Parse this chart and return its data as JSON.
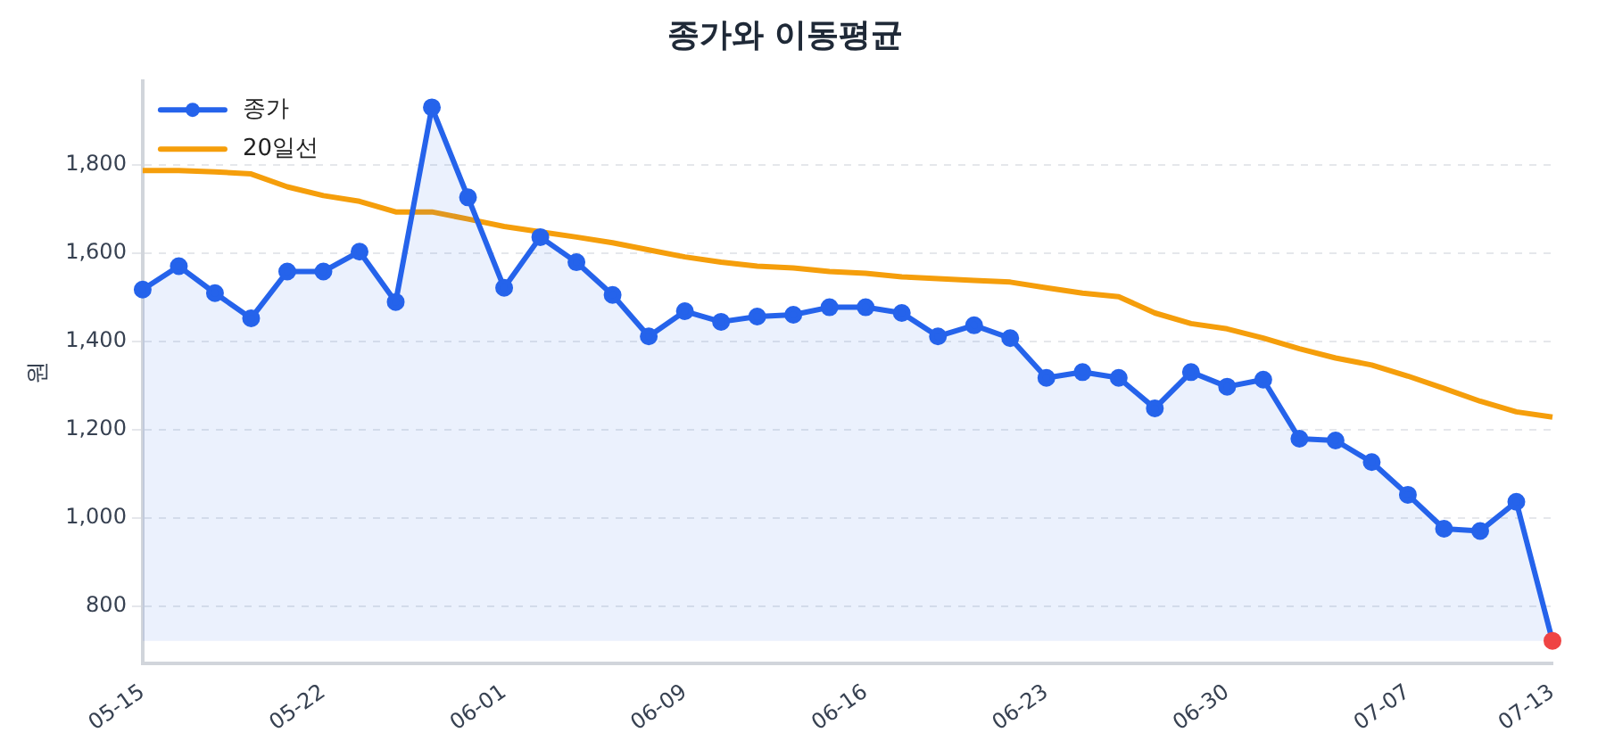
{
  "chart_data": {
    "type": "line",
    "title": "종가와 이동평균",
    "ylabel": "원",
    "categories": [
      "05-15",
      null,
      null,
      null,
      null,
      "05-22",
      null,
      null,
      null,
      null,
      "06-01",
      null,
      null,
      null,
      null,
      "06-09",
      null,
      null,
      null,
      null,
      "06-16",
      null,
      null,
      null,
      null,
      "06-23",
      null,
      null,
      null,
      null,
      "06-30",
      null,
      null,
      null,
      null,
      "07-07",
      null,
      null,
      null,
      "07-13"
    ],
    "series": [
      {
        "name": "종가",
        "type": "area",
        "marker": "circle",
        "color": "#2563eb",
        "colors": [
          "#2563eb",
          "#2563eb",
          "#2563eb",
          "#2563eb",
          "#2563eb",
          "#2563eb",
          "#2563eb",
          "#2563eb",
          "#2563eb",
          "#2563eb",
          "#2563eb",
          "#2563eb",
          "#2563eb",
          "#2563eb",
          "#2563eb",
          "#2563eb",
          "#2563eb",
          "#2563eb",
          "#2563eb",
          "#2563eb",
          "#2563eb",
          "#2563eb",
          "#2563eb",
          "#2563eb",
          "#2563eb",
          "#2563eb",
          "#2563eb",
          "#2563eb",
          "#2563eb",
          "#2563eb",
          "#2563eb",
          "#2563eb",
          "#2563eb",
          "#2563eb",
          "#2563eb",
          "#2563eb",
          "#2563eb",
          "#2563eb",
          "#2563eb",
          "#ef4444"
        ],
        "values": [
          1518,
          1571,
          1510,
          1453,
          1559,
          1559,
          1604,
          1490,
          1931,
          1727,
          1522,
          1637,
          1580,
          1506,
          1412,
          1469,
          1445,
          1457,
          1461,
          1478,
          1478,
          1465,
          1412,
          1437,
          1408,
          1318,
          1331,
          1318,
          1249,
          1331,
          1298,
          1314,
          1180,
          1176,
          1127,
          1053,
          976,
          971,
          1037,
          722
        ]
      },
      {
        "name": "20일선",
        "type": "line",
        "marker": "none",
        "color": "#f59e0b",
        "values": [
          1788,
          1788,
          1785,
          1780,
          1751,
          1731,
          1718,
          1694,
          1694,
          1678,
          1661,
          1649,
          1637,
          1624,
          1608,
          1592,
          1580,
          1571,
          1567,
          1559,
          1555,
          1547,
          1543,
          1539,
          1535,
          1522,
          1510,
          1502,
          1465,
          1441,
          1429,
          1408,
          1384,
          1363,
          1347,
          1322,
          1294,
          1265,
          1241,
          1229
        ]
      }
    ],
    "ylim": [
      670,
      1990
    ],
    "yticks": [
      {
        "value": 800,
        "label": "800"
      },
      {
        "value": 1000,
        "label": "1,000"
      },
      {
        "value": 1200,
        "label": "1,200"
      },
      {
        "value": 1400,
        "label": "1,400"
      },
      {
        "value": 1600,
        "label": "1,600"
      },
      {
        "value": 1800,
        "label": "1,800"
      }
    ],
    "grid": "y",
    "legend": "top left"
  }
}
